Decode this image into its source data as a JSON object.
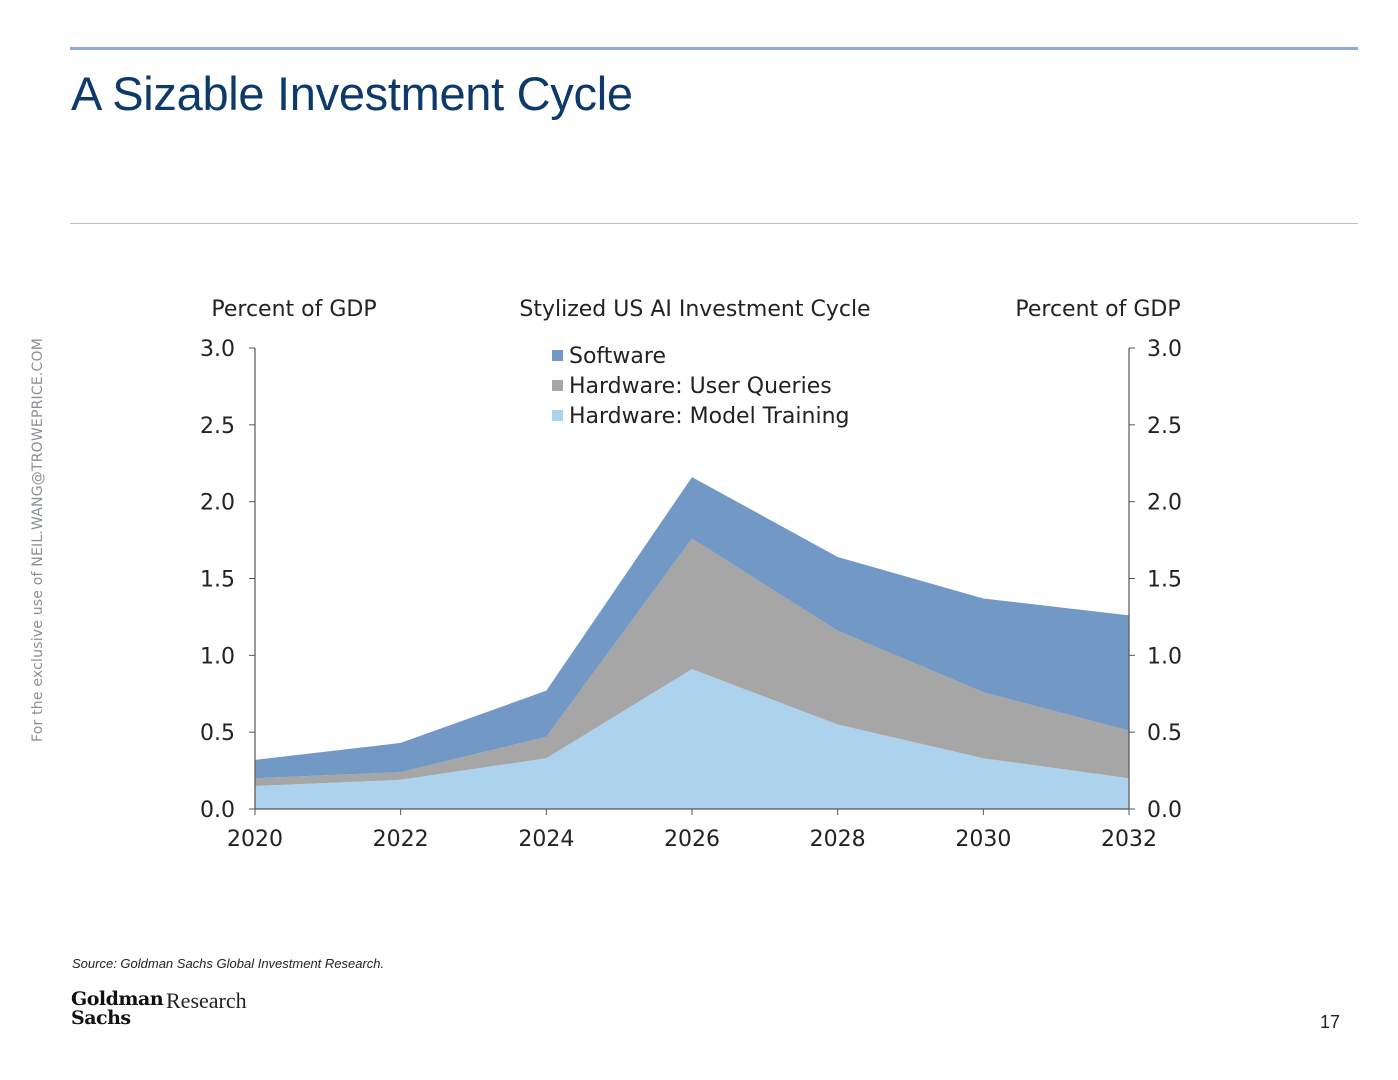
{
  "slide": {
    "title": "A Sizable Investment Cycle",
    "watermark": "For the exclusive use of NEIL.WANG@TROWEPRICE.COM",
    "source": "Source: Goldman Sachs Global Investment Research.",
    "logo_line1": "Goldman",
    "logo_line2": "Sachs",
    "logo_research": "Research",
    "page_number": "17"
  },
  "colors": {
    "title": "#0d3a6b",
    "rule": "#8eaadb",
    "software": "#7298c5",
    "user_queries": "#a6a6a6",
    "model_training": "#acd2ee"
  },
  "chart_data": {
    "type": "area",
    "stacked": true,
    "title": "Stylized US AI Investment Cycle",
    "ylabel_left": "Percent of GDP",
    "ylabel_right": "Percent of GDP",
    "xlabel": "",
    "x": [
      2020,
      2022,
      2024,
      2026,
      2028,
      2030,
      2032
    ],
    "x_ticks": [
      "2020",
      "2022",
      "2024",
      "2026",
      "2028",
      "2030",
      "2032"
    ],
    "xlim": [
      2020,
      2032
    ],
    "ylim": [
      0,
      3.0
    ],
    "y_ticks": [
      "0.0",
      "0.5",
      "1.0",
      "1.5",
      "2.0",
      "2.5",
      "3.0"
    ],
    "series": [
      {
        "name": "Hardware: Model Training",
        "color": "#acd2ee",
        "values": [
          0.15,
          0.19,
          0.33,
          0.91,
          0.55,
          0.33,
          0.2
        ]
      },
      {
        "name": "Hardware: User Queries",
        "color": "#a6a6a6",
        "values": [
          0.05,
          0.05,
          0.14,
          0.85,
          0.61,
          0.43,
          0.31
        ]
      },
      {
        "name": "Software",
        "color": "#7298c5",
        "values": [
          0.12,
          0.19,
          0.3,
          0.4,
          0.48,
          0.61,
          0.75
        ]
      }
    ],
    "legend": [
      "Software",
      "Hardware: User Queries",
      "Hardware: Model Training"
    ],
    "legend_position": "top-center",
    "grid": false
  }
}
